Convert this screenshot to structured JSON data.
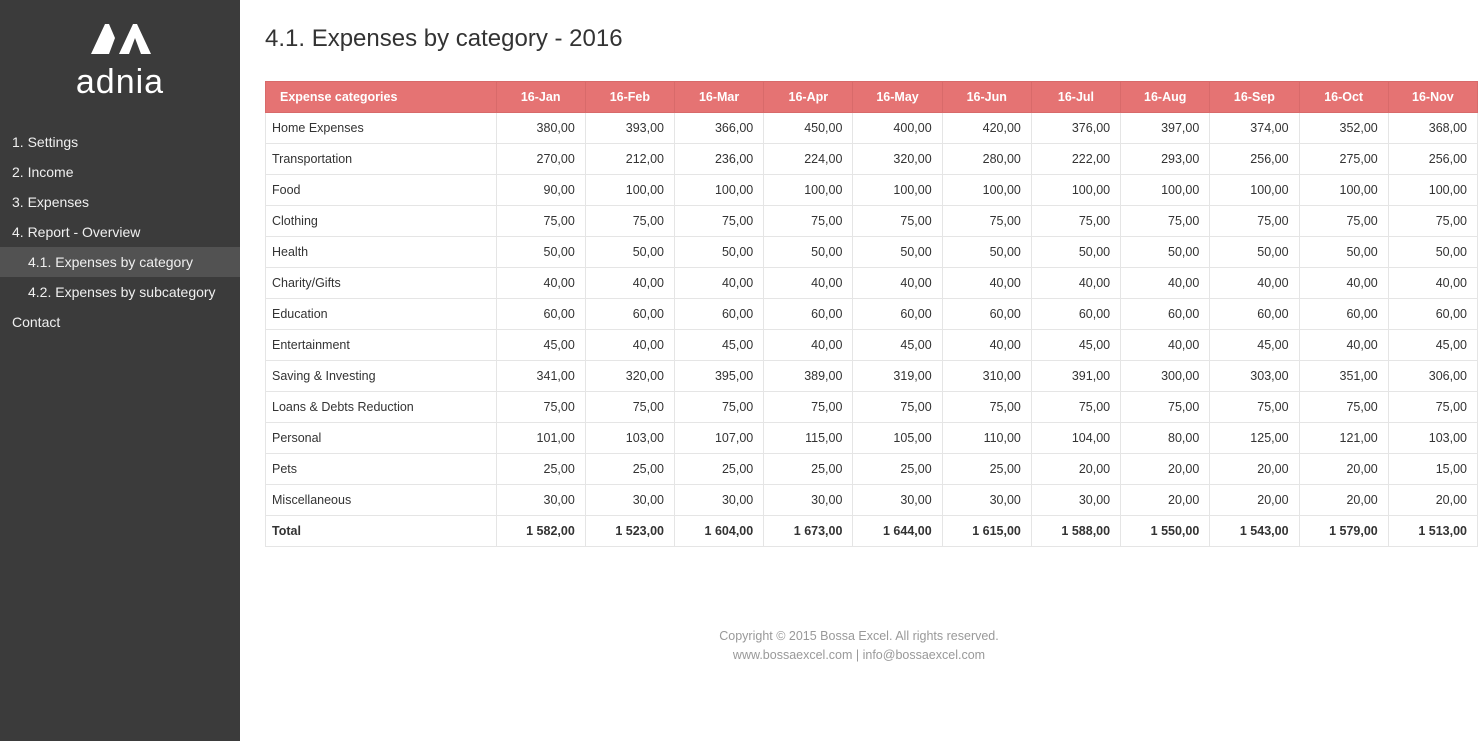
{
  "brand": {
    "name": "adnia"
  },
  "sidebar": {
    "items": [
      {
        "label": "1. Settings",
        "sub": false,
        "active": false
      },
      {
        "label": "2. Income",
        "sub": false,
        "active": false
      },
      {
        "label": "3. Expenses",
        "sub": false,
        "active": false
      },
      {
        "label": "4. Report - Overview",
        "sub": false,
        "active": false
      },
      {
        "label": "4.1. Expenses by category",
        "sub": true,
        "active": true
      },
      {
        "label": "4.2. Expenses by subcategory",
        "sub": true,
        "active": false
      },
      {
        "label": "Contact",
        "sub": false,
        "active": false
      }
    ]
  },
  "page": {
    "title": "4.1. Expenses by category - 2016"
  },
  "table": {
    "type": "table",
    "header_bg": "#e57373",
    "header_fg": "#ffffff",
    "border_color": "#e5e5e5",
    "cat_col_width": 230,
    "num_col_width": 89,
    "columns": [
      "Expense categories",
      "16-Jan",
      "16-Feb",
      "16-Mar",
      "16-Apr",
      "16-May",
      "16-Jun",
      "16-Jul",
      "16-Aug",
      "16-Sep",
      "16-Oct",
      "16-Nov"
    ],
    "rows": [
      {
        "label": "Home Expenses",
        "values": [
          "380,00",
          "393,00",
          "366,00",
          "450,00",
          "400,00",
          "420,00",
          "376,00",
          "397,00",
          "374,00",
          "352,00",
          "368,00"
        ]
      },
      {
        "label": "Transportation",
        "values": [
          "270,00",
          "212,00",
          "236,00",
          "224,00",
          "320,00",
          "280,00",
          "222,00",
          "293,00",
          "256,00",
          "275,00",
          "256,00"
        ]
      },
      {
        "label": "Food",
        "values": [
          "90,00",
          "100,00",
          "100,00",
          "100,00",
          "100,00",
          "100,00",
          "100,00",
          "100,00",
          "100,00",
          "100,00",
          "100,00"
        ]
      },
      {
        "label": "Clothing",
        "values": [
          "75,00",
          "75,00",
          "75,00",
          "75,00",
          "75,00",
          "75,00",
          "75,00",
          "75,00",
          "75,00",
          "75,00",
          "75,00"
        ]
      },
      {
        "label": "Health",
        "values": [
          "50,00",
          "50,00",
          "50,00",
          "50,00",
          "50,00",
          "50,00",
          "50,00",
          "50,00",
          "50,00",
          "50,00",
          "50,00"
        ]
      },
      {
        "label": "Charity/Gifts",
        "values": [
          "40,00",
          "40,00",
          "40,00",
          "40,00",
          "40,00",
          "40,00",
          "40,00",
          "40,00",
          "40,00",
          "40,00",
          "40,00"
        ]
      },
      {
        "label": "Education",
        "values": [
          "60,00",
          "60,00",
          "60,00",
          "60,00",
          "60,00",
          "60,00",
          "60,00",
          "60,00",
          "60,00",
          "60,00",
          "60,00"
        ]
      },
      {
        "label": "Entertainment",
        "values": [
          "45,00",
          "40,00",
          "45,00",
          "40,00",
          "45,00",
          "40,00",
          "45,00",
          "40,00",
          "45,00",
          "40,00",
          "45,00"
        ]
      },
      {
        "label": "Saving & Investing",
        "values": [
          "341,00",
          "320,00",
          "395,00",
          "389,00",
          "319,00",
          "310,00",
          "391,00",
          "300,00",
          "303,00",
          "351,00",
          "306,00"
        ]
      },
      {
        "label": "Loans & Debts Reduction",
        "values": [
          "75,00",
          "75,00",
          "75,00",
          "75,00",
          "75,00",
          "75,00",
          "75,00",
          "75,00",
          "75,00",
          "75,00",
          "75,00"
        ]
      },
      {
        "label": "Personal",
        "values": [
          "101,00",
          "103,00",
          "107,00",
          "115,00",
          "105,00",
          "110,00",
          "104,00",
          "80,00",
          "125,00",
          "121,00",
          "103,00"
        ]
      },
      {
        "label": "Pets",
        "values": [
          "25,00",
          "25,00",
          "25,00",
          "25,00",
          "25,00",
          "25,00",
          "20,00",
          "20,00",
          "20,00",
          "20,00",
          "15,00"
        ]
      },
      {
        "label": "Miscellaneous",
        "values": [
          "30,00",
          "30,00",
          "30,00",
          "30,00",
          "30,00",
          "30,00",
          "30,00",
          "20,00",
          "20,00",
          "20,00",
          "20,00"
        ]
      }
    ],
    "total": {
      "label": "Total",
      "values": [
        "1 582,00",
        "1 523,00",
        "1 604,00",
        "1 673,00",
        "1 644,00",
        "1 615,00",
        "1 588,00",
        "1 550,00",
        "1 543,00",
        "1 579,00",
        "1 513,00"
      ]
    }
  },
  "footer": {
    "line1": "Copyright © 2015 Bossa Excel. All rights reserved.",
    "line2": "www.bossaexcel.com | info@bossaexcel.com"
  }
}
